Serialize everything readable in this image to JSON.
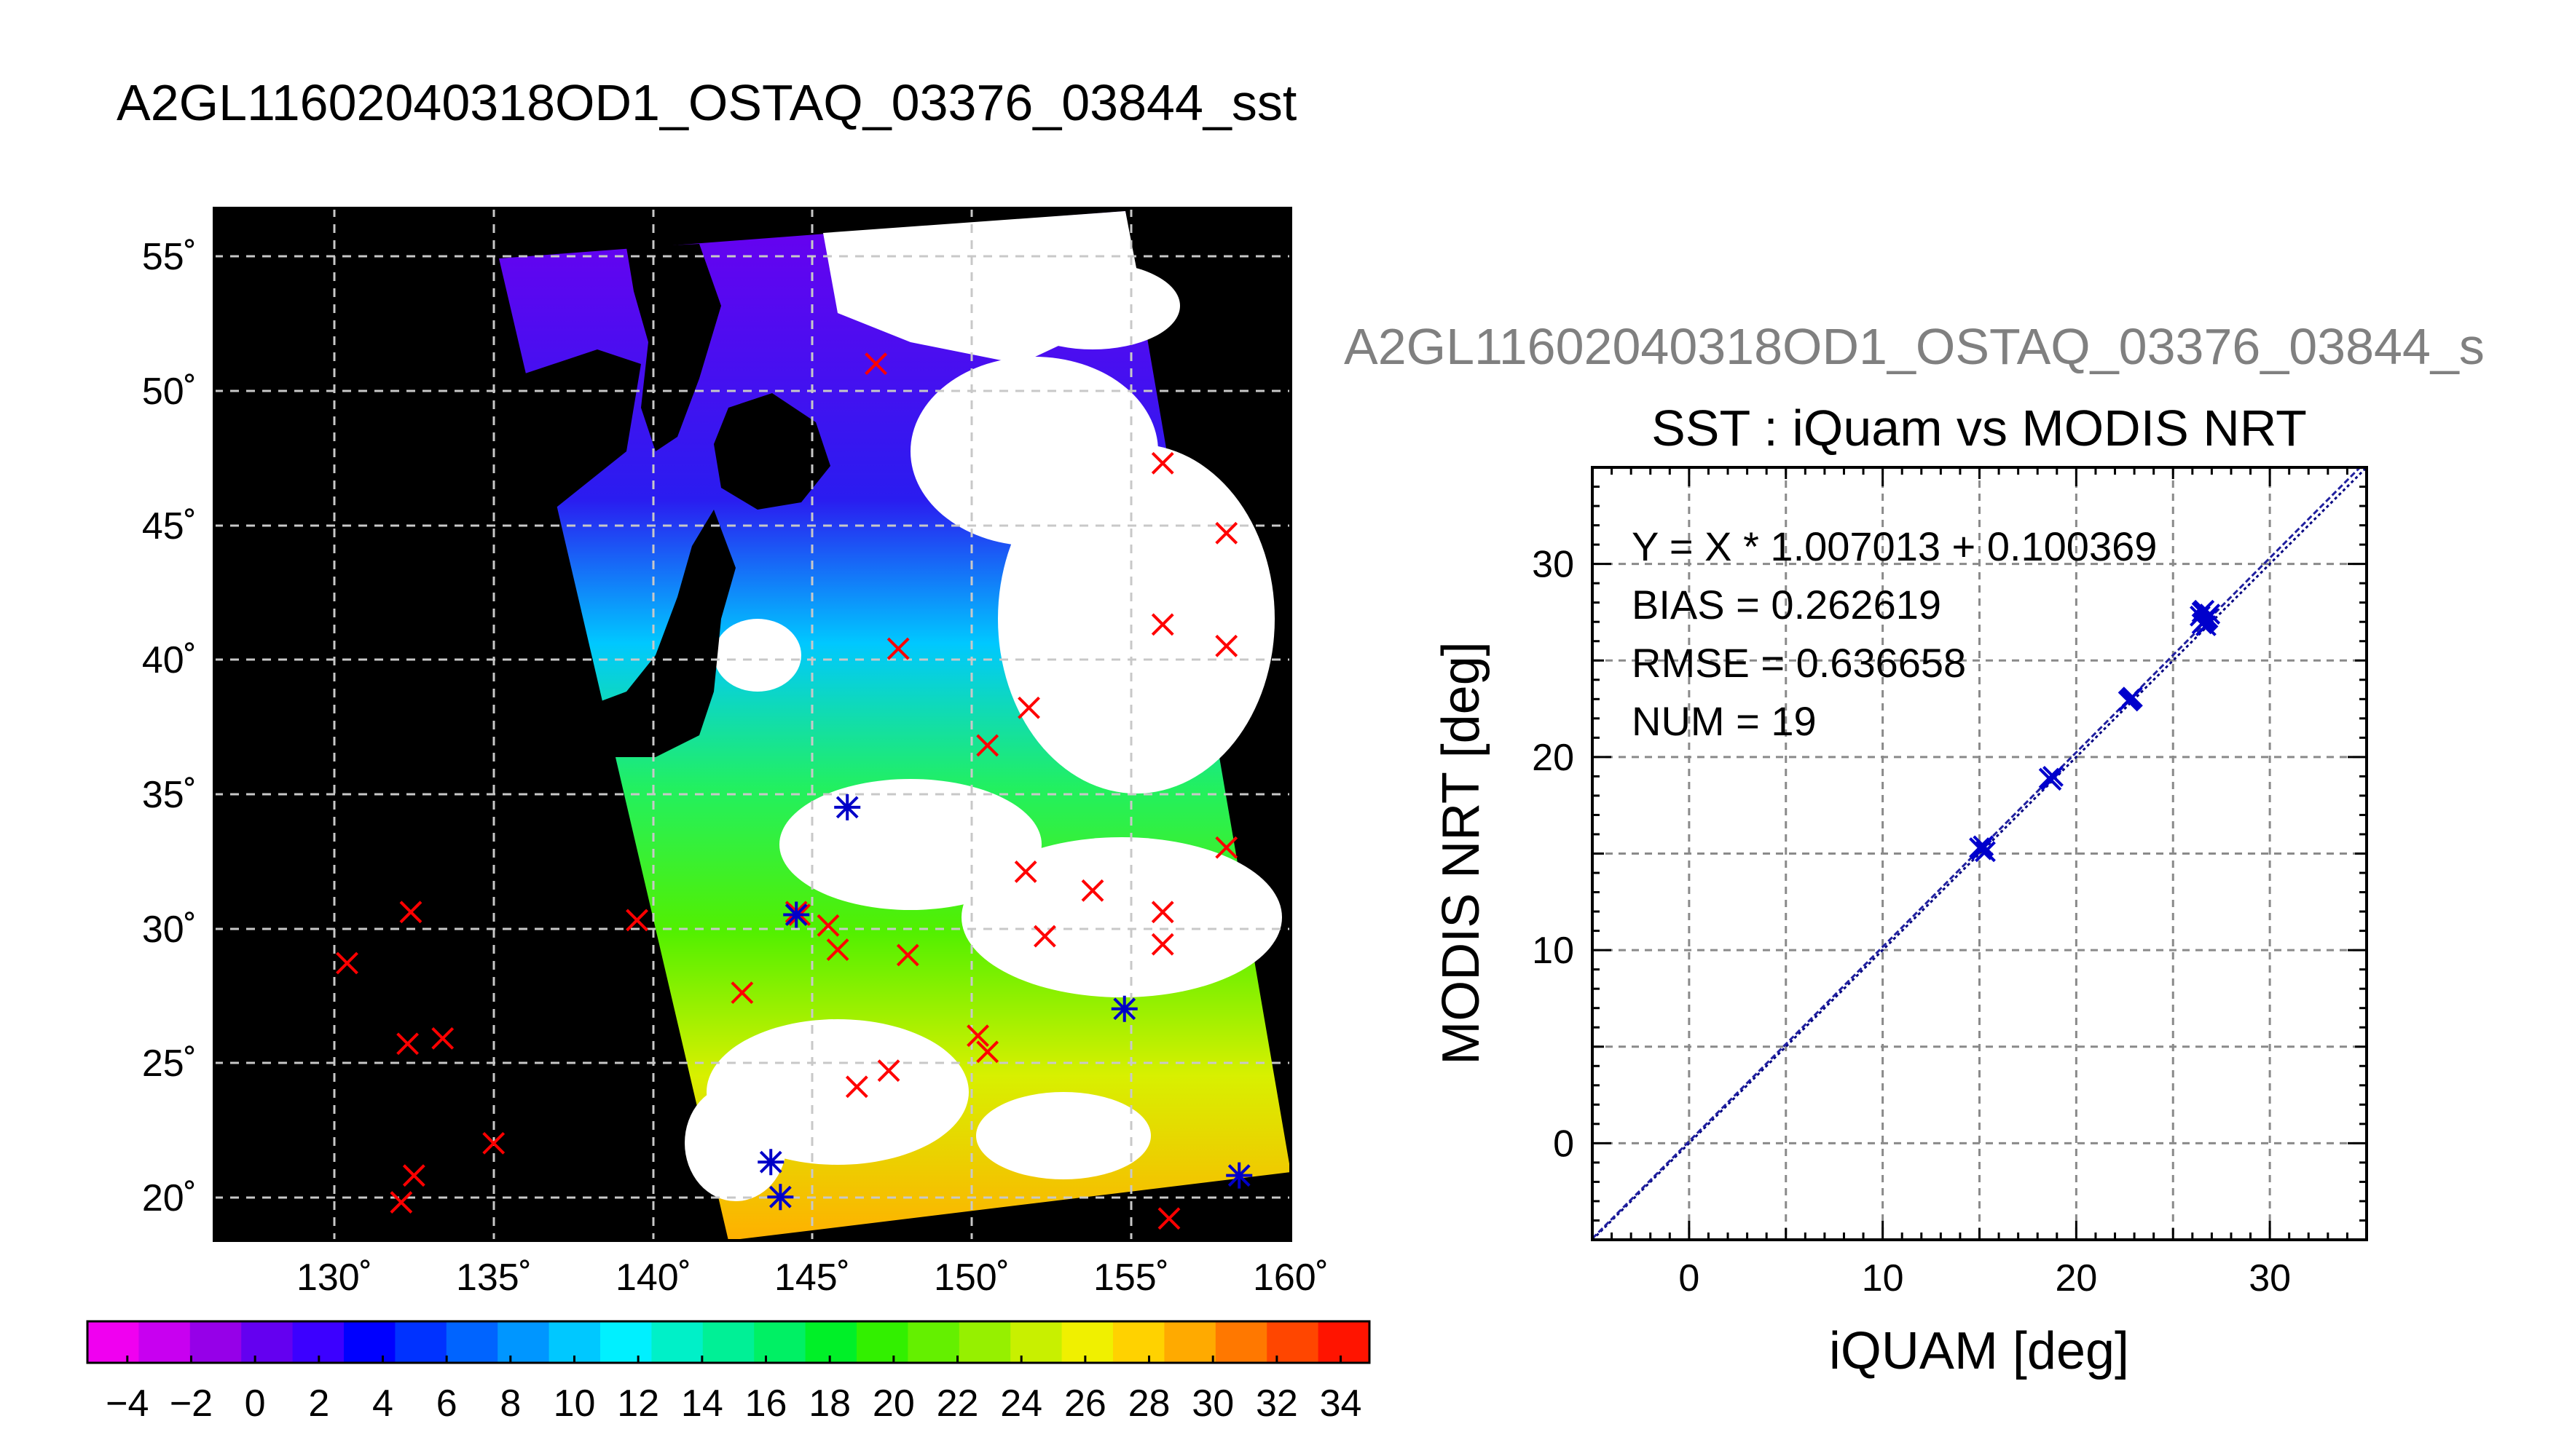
{
  "map": {
    "title": "A2GL11602040318OD1_OSTAQ_03376_03844_sst",
    "lat_ticks": [
      "55˚",
      "50˚",
      "45˚",
      "40˚",
      "35˚",
      "30˚",
      "25˚",
      "20˚"
    ],
    "lon_ticks": [
      "130˚",
      "135˚",
      "140˚",
      "145˚",
      "150˚",
      "155˚",
      "160˚"
    ],
    "colorbar_ticks": [
      "−4",
      "−2",
      "0",
      "2",
      "4",
      "6",
      "8",
      "10",
      "12",
      "14",
      "16",
      "18",
      "20",
      "22",
      "24",
      "26",
      "28",
      "30",
      "32",
      "34"
    ],
    "colorbar_colors": [
      "#f000f0",
      "#c800f0",
      "#9600e8",
      "#6400f0",
      "#3c00ff",
      "#0000ff",
      "#0032ff",
      "#0064ff",
      "#0096ff",
      "#00c8ff",
      "#00f0ff",
      "#00f0c8",
      "#00f096",
      "#00f064",
      "#00f028",
      "#32f000",
      "#64f000",
      "#96f000",
      "#c8f000",
      "#f0f000",
      "#ffd200",
      "#ffaa00",
      "#ff7800",
      "#ff4600",
      "#ff1400"
    ],
    "marker_color": "#ff0000",
    "matched_marker_color": "#0000c8"
  },
  "chart_data": {
    "type": "scatter",
    "file_label": "A2GL11602040318OD1_OSTAQ_03376_03844_s",
    "title": "SST : iQuam vs MODIS NRT",
    "xlabel": "iQUAM [deg]",
    "ylabel": "MODIS NRT [deg]",
    "xlim": [
      -5,
      35
    ],
    "ylim": [
      -5,
      35
    ],
    "x_ticks": [
      "0",
      "10",
      "20",
      "30"
    ],
    "y_ticks": [
      "0",
      "10",
      "20",
      "30"
    ],
    "grid": true,
    "stats": [
      "Y = X * 1.007013 + 0.100369",
      "BIAS = 0.262619",
      "RMSE = 0.636658",
      "NUM = 19"
    ],
    "fit": {
      "slope": 1.007013,
      "intercept": 0.100369
    },
    "points": [
      {
        "x": 15.0,
        "y": 15.3
      },
      {
        "x": 15.1,
        "y": 15.2
      },
      {
        "x": 15.2,
        "y": 15.4
      },
      {
        "x": 18.6,
        "y": 18.9
      },
      {
        "x": 18.8,
        "y": 19.0
      },
      {
        "x": 22.8,
        "y": 23.0
      },
      {
        "x": 22.9,
        "y": 23.1
      },
      {
        "x": 26.4,
        "y": 27.3
      },
      {
        "x": 26.5,
        "y": 27.5
      },
      {
        "x": 26.6,
        "y": 27.0
      },
      {
        "x": 26.7,
        "y": 26.8
      },
      {
        "x": 26.8,
        "y": 27.2
      },
      {
        "x": 26.5,
        "y": 26.9
      },
      {
        "x": 26.9,
        "y": 27.4
      },
      {
        "x": 26.6,
        "y": 27.6
      },
      {
        "x": 15.3,
        "y": 15.1
      },
      {
        "x": 18.7,
        "y": 18.8
      },
      {
        "x": 22.7,
        "y": 22.9
      },
      {
        "x": 26.7,
        "y": 27.1
      }
    ],
    "color": "#0000cc"
  }
}
